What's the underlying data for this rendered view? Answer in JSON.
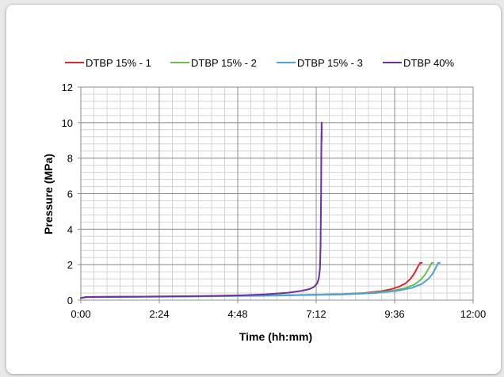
{
  "chart_data": {
    "type": "line",
    "title": "",
    "xlabel": "Time (hh:mm)",
    "ylabel": "Pressure (MPa)",
    "xlim_minutes": [
      0,
      720
    ],
    "ylim": [
      0,
      12
    ],
    "x_ticks": [
      {
        "value": 0,
        "label": "0:00"
      },
      {
        "value": 144,
        "label": "2:24"
      },
      {
        "value": 288,
        "label": "4:48"
      },
      {
        "value": 432,
        "label": "7:12"
      },
      {
        "value": 576,
        "label": "9:36"
      },
      {
        "value": 720,
        "label": "12:00"
      }
    ],
    "y_ticks": [
      {
        "value": 0,
        "label": "0"
      },
      {
        "value": 2,
        "label": "2"
      },
      {
        "value": 4,
        "label": "4"
      },
      {
        "value": 6,
        "label": "6"
      },
      {
        "value": 8,
        "label": "8"
      },
      {
        "value": 10,
        "label": "10"
      },
      {
        "value": 12,
        "label": "12"
      }
    ],
    "grid": {
      "major": true,
      "minor": true
    },
    "legend_position": "top",
    "series": [
      {
        "name": "DTBP 15% - 1",
        "color": "#e0242c",
        "points": [
          [
            0,
            0.12
          ],
          [
            10,
            0.18
          ],
          [
            60,
            0.19
          ],
          [
            120,
            0.2
          ],
          [
            180,
            0.21
          ],
          [
            240,
            0.23
          ],
          [
            300,
            0.25
          ],
          [
            360,
            0.27
          ],
          [
            420,
            0.3
          ],
          [
            480,
            0.34
          ],
          [
            520,
            0.4
          ],
          [
            550,
            0.5
          ],
          [
            570,
            0.62
          ],
          [
            585,
            0.77
          ],
          [
            596,
            0.95
          ],
          [
            605,
            1.2
          ],
          [
            612,
            1.5
          ],
          [
            618,
            1.85
          ],
          [
            623,
            2.1
          ],
          [
            626,
            2.1
          ]
        ]
      },
      {
        "name": "DTBP 15% - 2",
        "color": "#6cbf4a",
        "points": [
          [
            0,
            0.12
          ],
          [
            10,
            0.18
          ],
          [
            60,
            0.19
          ],
          [
            120,
            0.2
          ],
          [
            180,
            0.21
          ],
          [
            240,
            0.23
          ],
          [
            300,
            0.25
          ],
          [
            360,
            0.27
          ],
          [
            420,
            0.3
          ],
          [
            480,
            0.33
          ],
          [
            530,
            0.4
          ],
          [
            570,
            0.52
          ],
          [
            595,
            0.68
          ],
          [
            612,
            0.88
          ],
          [
            624,
            1.15
          ],
          [
            632,
            1.45
          ],
          [
            639,
            1.8
          ],
          [
            644,
            2.1
          ],
          [
            647,
            2.1
          ]
        ]
      },
      {
        "name": "DTBP 15% - 3",
        "color": "#4aa3d8",
        "points": [
          [
            0,
            0.12
          ],
          [
            10,
            0.17
          ],
          [
            60,
            0.18
          ],
          [
            120,
            0.19
          ],
          [
            180,
            0.2
          ],
          [
            240,
            0.22
          ],
          [
            300,
            0.24
          ],
          [
            360,
            0.26
          ],
          [
            420,
            0.29
          ],
          [
            480,
            0.32
          ],
          [
            540,
            0.4
          ],
          [
            580,
            0.52
          ],
          [
            608,
            0.7
          ],
          [
            626,
            0.92
          ],
          [
            638,
            1.2
          ],
          [
            646,
            1.5
          ],
          [
            652,
            1.85
          ],
          [
            656,
            2.1
          ],
          [
            659,
            2.1
          ]
        ]
      },
      {
        "name": "DTBP 40%",
        "color": "#7030a0",
        "points": [
          [
            0,
            0.12
          ],
          [
            10,
            0.18
          ],
          [
            60,
            0.19
          ],
          [
            120,
            0.2
          ],
          [
            180,
            0.22
          ],
          [
            240,
            0.24
          ],
          [
            300,
            0.28
          ],
          [
            340,
            0.33
          ],
          [
            380,
            0.42
          ],
          [
            405,
            0.52
          ],
          [
            420,
            0.63
          ],
          [
            428,
            0.75
          ],
          [
            434,
            0.95
          ],
          [
            437,
            1.25
          ],
          [
            439,
            1.8
          ],
          [
            440,
            3
          ],
          [
            441,
            6
          ],
          [
            441.5,
            8.5
          ],
          [
            442,
            10
          ],
          [
            442,
            9
          ]
        ]
      }
    ]
  }
}
